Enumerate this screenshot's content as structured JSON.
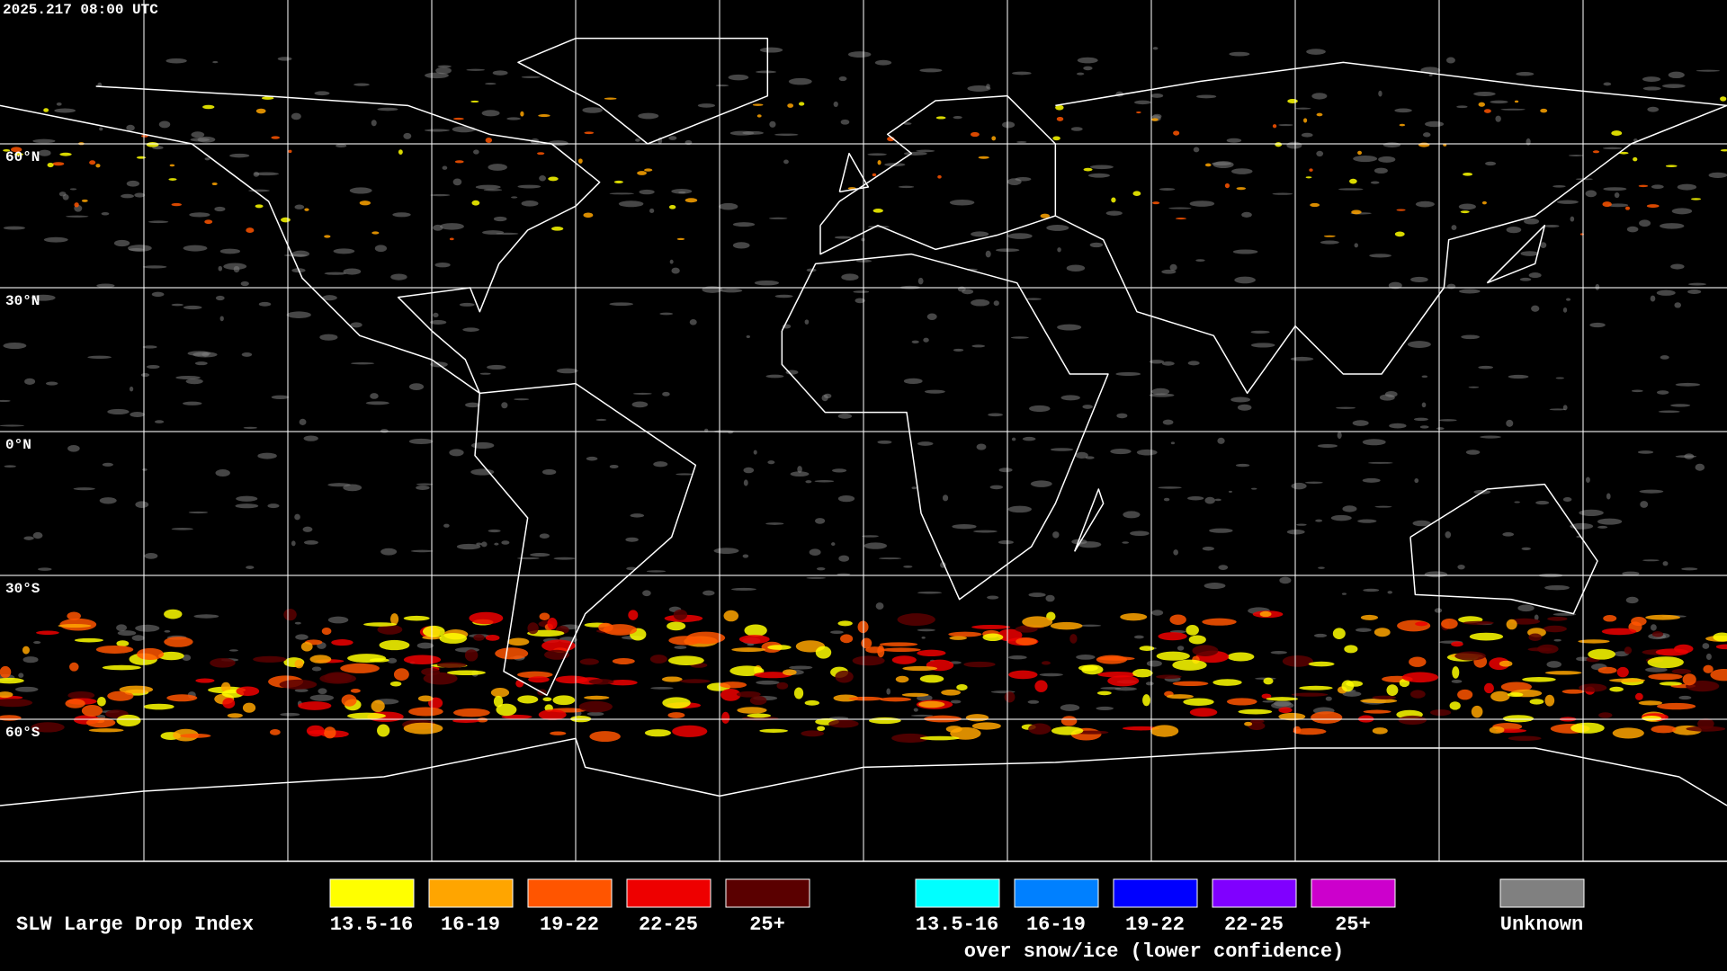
{
  "header": {
    "timestamp": "2025.217 08:00 UTC"
  },
  "map": {
    "latitude_labels": [
      "60°N",
      "30°N",
      "0°N",
      "30°S",
      "60°S"
    ]
  },
  "legend": {
    "title": "SLW Large Drop Index",
    "groups": [
      {
        "items": [
          {
            "label": "13.5-16",
            "color": "#ffff00"
          },
          {
            "label": "16-19",
            "color": "#ffa500"
          },
          {
            "label": "19-22",
            "color": "#ff5500"
          },
          {
            "label": "22-25",
            "color": "#ee0000"
          },
          {
            "label": "25+",
            "color": "#5a0000"
          }
        ]
      },
      {
        "items": [
          {
            "label": "13.5-16",
            "color": "#00ffff"
          },
          {
            "label": "16-19",
            "color": "#0080ff"
          },
          {
            "label": "19-22",
            "color": "#0000ff"
          },
          {
            "label": "22-25",
            "color": "#8000ff"
          },
          {
            "label": "25+",
            "color": "#cc00cc"
          }
        ],
        "note": "over snow/ice (lower confidence)"
      },
      {
        "items": [
          {
            "label": "Unknown",
            "color": "#808080"
          }
        ]
      }
    ]
  }
}
